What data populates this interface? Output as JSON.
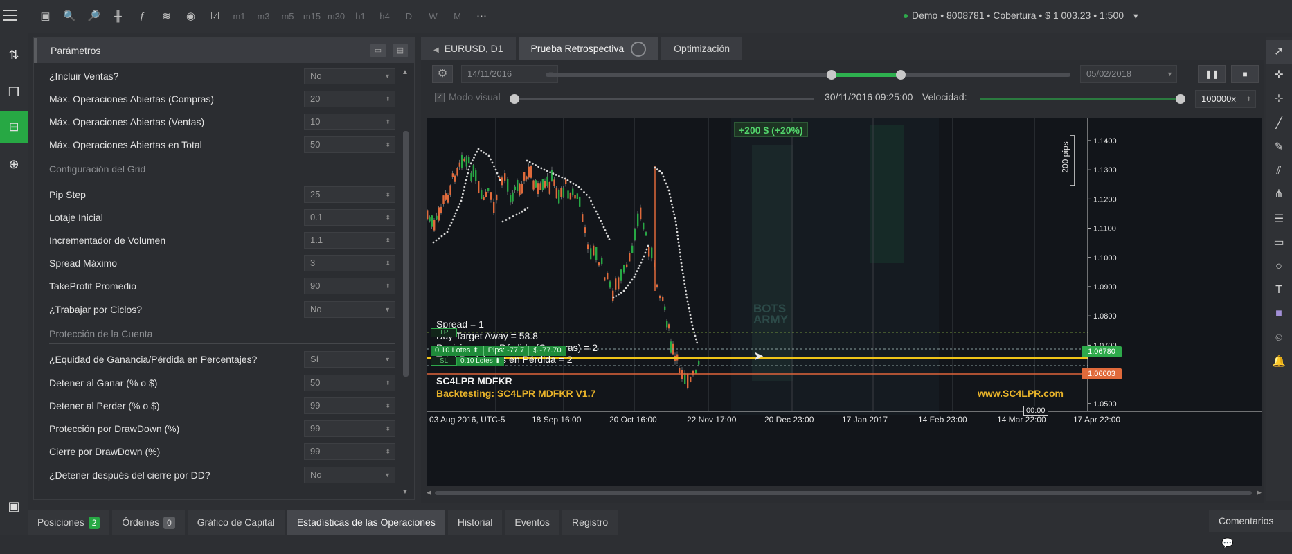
{
  "topbar": {
    "timeframes": [
      "m1",
      "m3",
      "m5",
      "m15",
      "m30",
      "h1",
      "h4",
      "D",
      "W",
      "M"
    ],
    "account": "Demo • 8008781 • Cobertura • $ 1 003.23 • 1:500"
  },
  "panel": {
    "title": "Parámetros",
    "rows": [
      {
        "label": "¿Incluir Ventas?",
        "value": "No",
        "kind": "select"
      },
      {
        "label": "Máx. Operaciones Abiertas (Compras)",
        "value": "20",
        "kind": "spin"
      },
      {
        "label": "Máx. Operaciones Abiertas (Ventas)",
        "value": "10",
        "kind": "spin"
      },
      {
        "label": "Máx. Operaciones Abiertas en Total",
        "value": "50",
        "kind": "spin"
      }
    ],
    "section_grid": "Configuración del Grid",
    "grid_rows": [
      {
        "label": "Pip Step",
        "value": "25",
        "kind": "spin"
      },
      {
        "label": "Lotaje Inicial",
        "value": "0.1",
        "kind": "spin"
      },
      {
        "label": "Incrementador de Volumen",
        "value": "1.1",
        "kind": "spin"
      },
      {
        "label": "Spread Máximo",
        "value": "3",
        "kind": "spin"
      },
      {
        "label": "TakeProfit Promedio",
        "value": "90",
        "kind": "spin"
      },
      {
        "label": "¿Trabajar por Ciclos?",
        "value": "No",
        "kind": "select"
      }
    ],
    "section_protect": "Protección de la Cuenta",
    "protect_rows": [
      {
        "label": "¿Equidad de Ganancia/Pérdida en Percentajes?",
        "value": "Sí",
        "kind": "select"
      },
      {
        "label": "Detener al Ganar (% o $)",
        "value": "50",
        "kind": "spin"
      },
      {
        "label": "Detener al Perder (% o $)",
        "value": "99",
        "kind": "spin"
      },
      {
        "label": "Protección por DrawDown (%)",
        "value": "99",
        "kind": "spin"
      },
      {
        "label": "Cierre por DrawDown (%)",
        "value": "99",
        "kind": "spin"
      },
      {
        "label": "¿Detener después del cierre por DD?",
        "value": "No",
        "kind": "select"
      }
    ]
  },
  "tabs": {
    "chart": "EURUSD, D1",
    "backtest": "Prueba Retrospectiva",
    "optimize": "Optimización"
  },
  "controls": {
    "start_date": "14/11/2016",
    "end_date": "05/02/2018",
    "visual_mode": "Modo visual",
    "current_time": "30/11/2016 09:25:00",
    "speed_label": "Velocidad:",
    "speed_value": "100000x"
  },
  "chart": {
    "profit_label": "+200 $ (+20%)",
    "pips_label": "200 pips",
    "price_ticks": [
      "1.1400",
      "1.1300",
      "1.1200",
      "1.1100",
      "1.1000",
      "1.0900",
      "1.0800",
      "1.0700",
      "1.0600",
      "1.0500"
    ],
    "price_marker_green": "1.06780",
    "price_marker_red": "1.06003",
    "date_ticks": [
      "03 Aug 2016, UTC-5",
      "18 Sep 16:00",
      "20 Oct 16:00",
      "22 Nov 17:00",
      "20 Dec 23:00",
      "17 Jan 2017",
      "14 Feb 23:00",
      "14 Mar 22:00",
      "17 Apr 22:00"
    ],
    "time_box": "00:00",
    "info_lines": [
      "Spread = 1",
      "Buy Target Away = 58.8",
      "Posiciones en Pérdida (Compras) = 2",
      "Total Posiciones en Pérdida = 2"
    ],
    "tp_tag": "TP",
    "sl_tag": "SL",
    "trade_lots": "0.10 Lotes ⬆",
    "trade_pips": "Pips: -77.7",
    "trade_money": "$ -77.70",
    "trade_lots2": "0.10 Lotes ⬆",
    "bot_name": "SC4LPR MDFKR",
    "bot_version": "Backtesting: SC4LPR MDFKR V1.7",
    "website": "www.SC4LPR.com",
    "watermark": "BOTS ARMY"
  },
  "bottom": {
    "positions": "Posiciones",
    "positions_count": "2",
    "orders": "Órdenes",
    "orders_count": "0",
    "equity_chart": "Gráfico de Capital",
    "stats": "Estadísticas de las Operaciones",
    "history": "Historial",
    "events": "Eventos",
    "log": "Registro",
    "comments": "Comentarios"
  }
}
